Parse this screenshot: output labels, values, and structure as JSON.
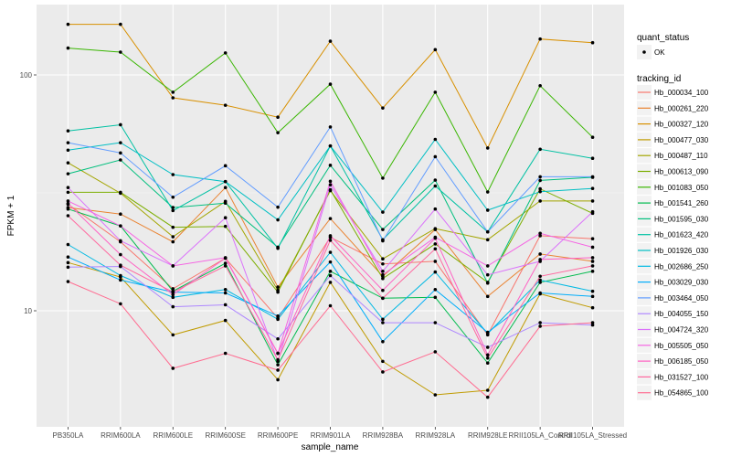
{
  "chart_data": {
    "type": "line",
    "title": "",
    "xlabel": "sample_name",
    "ylabel": "FPKM + 1",
    "y_scale": "log10",
    "ylim": [
      3.2,
      190
    ],
    "y_ticks": [
      10,
      100
    ],
    "y_tick_labels": [
      "10",
      "100"
    ],
    "grid": true,
    "legend_position": "right",
    "categories": [
      "PB350LA",
      "RRIM600LA",
      "RRIM600LE",
      "RRIM600SE",
      "RRIM600PE",
      "RRIM901LA",
      "RRIM928BA",
      "RRIM928LA",
      "RRIM928LE",
      "RRII105LA_Control",
      "RRII105LA_Stressed"
    ],
    "point_legend": {
      "title": "quant_status",
      "entries": [
        "OK"
      ]
    },
    "color_legend_title": "tracking_id",
    "series": [
      {
        "name": "Hb_000034_100",
        "color": "#F8766D",
        "values": [
          28.3,
          19.6,
          12.4,
          16.7,
          9.3,
          20.5,
          15.8,
          16.2,
          7.9,
          20.8,
          20.2
        ]
      },
      {
        "name": "Hb_000261_220",
        "color": "#EA8331",
        "values": [
          27.4,
          25.7,
          19.6,
          33.3,
          12.6,
          24.6,
          14.0,
          22.1,
          11.5,
          17.4,
          16.2
        ]
      },
      {
        "name": "Hb_000327_120",
        "color": "#D89000",
        "values": [
          164.0,
          164.0,
          80.0,
          74.4,
          66.2,
          139.0,
          72.4,
          128.0,
          49.0,
          142.0,
          137.0
        ]
      },
      {
        "name": "Hb_000477_030",
        "color": "#C09B00",
        "values": [
          16.0,
          13.9,
          7.9,
          9.1,
          5.1,
          13.2,
          6.1,
          4.4,
          4.6,
          11.8,
          10.3
        ]
      },
      {
        "name": "Hb_000487_110",
        "color": "#A3A500",
        "values": [
          42.4,
          31.5,
          20.6,
          29.1,
          12.2,
          32.3,
          16.6,
          22.3,
          20.0,
          29.2,
          29.2
        ]
      },
      {
        "name": "Hb_000613_090",
        "color": "#7CAE00",
        "values": [
          31.8,
          31.8,
          22.6,
          22.8,
          12.0,
          32.6,
          13.7,
          19.2,
          13.2,
          32.9,
          25.9
        ]
      },
      {
        "name": "Hb_001083_050",
        "color": "#39B600",
        "values": [
          130.0,
          125.0,
          84.5,
          124.0,
          56.9,
          91.4,
          36.5,
          84.5,
          31.9,
          90.0,
          54.4
        ]
      },
      {
        "name": "Hb_001541_260",
        "color": "#00BB4E",
        "values": [
          27.0,
          22.9,
          12.1,
          15.9,
          5.9,
          14.7,
          11.3,
          11.4,
          6.0,
          13.2,
          14.7
        ]
      },
      {
        "name": "Hb_001595_030",
        "color": "#00BF7D",
        "values": [
          38.1,
          43.6,
          27.4,
          28.6,
          18.6,
          41.4,
          22.1,
          35.8,
          13.1,
          35.7,
          36.8
        ]
      },
      {
        "name": "Hb_001623_420",
        "color": "#00C1A3",
        "values": [
          57.9,
          61.5,
          26.6,
          35.3,
          18.4,
          50.0,
          20.0,
          33.8,
          21.6,
          48.4,
          44.3
        ]
      },
      {
        "name": "Hb_001926_030",
        "color": "#00BFC4",
        "values": [
          48.0,
          51.6,
          37.8,
          35.3,
          24.3,
          50.0,
          26.2,
          53.3,
          26.7,
          32.0,
          33.0
        ]
      },
      {
        "name": "Hb_002686_250",
        "color": "#00B9E3",
        "values": [
          19.1,
          14.1,
          11.4,
          12.3,
          9.2,
          17.7,
          9.2,
          14.6,
          8.0,
          13.5,
          12.1
        ]
      },
      {
        "name": "Hb_003029_030",
        "color": "#00ADFA",
        "values": [
          16.9,
          13.5,
          12.0,
          11.9,
          9.5,
          16.1,
          7.4,
          12.3,
          8.1,
          11.9,
          11.5
        ]
      },
      {
        "name": "Hb_003464_050",
        "color": "#619CFF",
        "values": [
          51.6,
          46.7,
          30.3,
          41.2,
          27.5,
          60.2,
          19.8,
          45.0,
          21.6,
          37.0,
          37.0
        ]
      },
      {
        "name": "Hb_004055_150",
        "color": "#AE87FF",
        "values": [
          15.3,
          15.4,
          10.4,
          10.6,
          7.6,
          14.1,
          8.9,
          8.9,
          7.0,
          8.9,
          8.7
        ]
      },
      {
        "name": "Hb_004724_320",
        "color": "#DB72FB",
        "values": [
          33.3,
          19.8,
          15.5,
          24.8,
          6.1,
          34.2,
          14.7,
          27.0,
          14.2,
          16.2,
          26.3
        ]
      },
      {
        "name": "Hb_005505_050",
        "color": "#F564E3",
        "values": [
          29.2,
          22.9,
          15.5,
          16.8,
          6.6,
          35.4,
          14.2,
          20.5,
          15.5,
          21.3,
          18.6
        ]
      },
      {
        "name": "Hb_006185_050",
        "color": "#FF61C3",
        "values": [
          28.5,
          17.3,
          11.7,
          16.7,
          6.6,
          20.8,
          12.2,
          20.3,
          6.5,
          16.5,
          16.8
        ]
      },
      {
        "name": "Hb_031527_100",
        "color": "#FF689F",
        "values": [
          25.3,
          15.6,
          12.0,
          15.5,
          6.2,
          19.9,
          11.3,
          18.3,
          6.3,
          14.0,
          15.5
        ]
      },
      {
        "name": "Hb_054865_100",
        "color": "#FF6C91",
        "values": [
          13.3,
          10.7,
          5.7,
          6.6,
          5.6,
          10.5,
          5.5,
          6.7,
          4.3,
          8.6,
          8.9
        ]
      }
    ]
  }
}
